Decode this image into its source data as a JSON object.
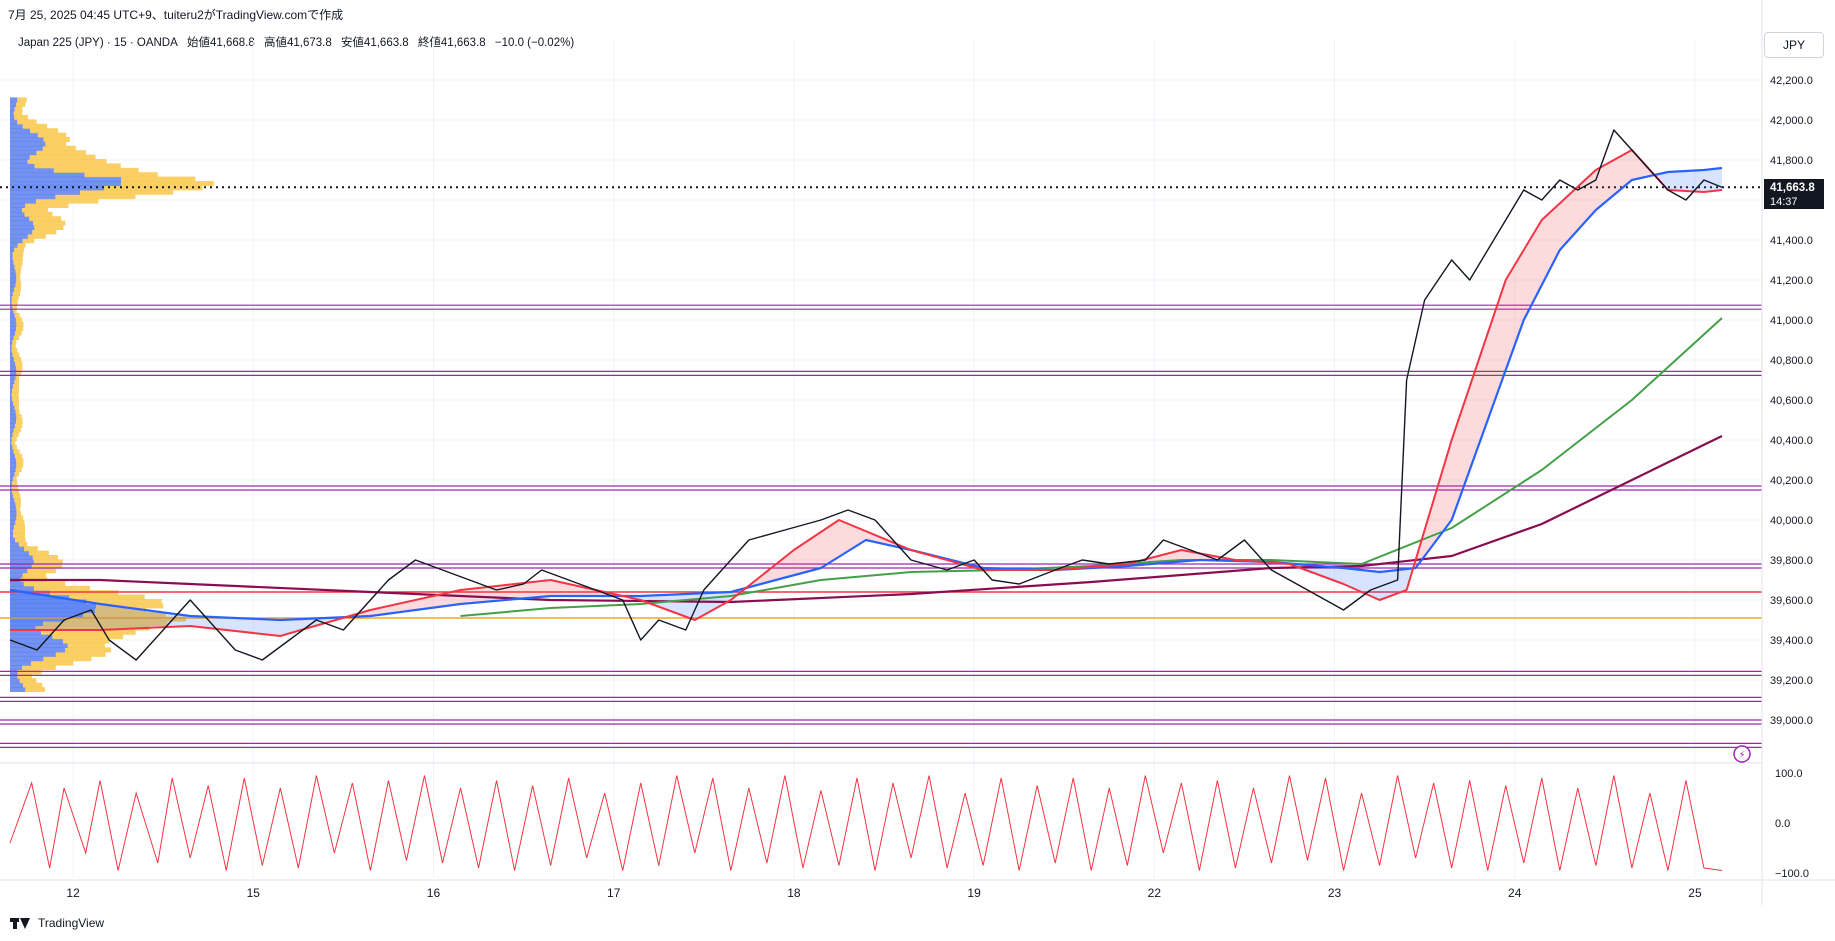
{
  "header": {
    "created_line": "7月 25, 2025 04:45 UTC+9、tuiteru2がTradingView.comで作成"
  },
  "legend": {
    "symbol": "Japan 225 (JPY) · 15 · OANDA",
    "open_label": "始値41,668.8",
    "high_label": "高値41,673.8",
    "low_label": "安値41,663.8",
    "close_label": "終値41,663.8",
    "change_label": "−10.0 (−0.02%)"
  },
  "currency_button": "JPY",
  "price_badge": {
    "price": "41,663.8",
    "countdown": "14:37"
  },
  "footer": {
    "brand": "TradingView"
  },
  "colors": {
    "price": "#131722",
    "ema_fast": "#f23645",
    "ema_mid": "#2962ff",
    "ema_green": "#43a047",
    "ema_maroon": "#880e4f",
    "level_line": "#9c27b0",
    "rsi": "#f23645",
    "vp_up": "#5b7ff0",
    "vp_down": "#f9c84b"
  },
  "chart_data": [
    {
      "type": "line",
      "ylim": [
        38800,
        42300
      ],
      "y_ticks": [
        "42,200.0",
        "42,000.0",
        "41,800.0",
        "41,600.0",
        "41,400.0",
        "41,200.0",
        "41,000.0",
        "40,800.0",
        "40,600.0",
        "40,400.0",
        "40,200.0",
        "40,000.0",
        "39,800.0",
        "39,600.0",
        "39,400.0",
        "39,200.0",
        "39,000.0"
      ],
      "y_tick_values": [
        42200,
        42000,
        41800,
        41600,
        41400,
        41200,
        41000,
        40800,
        40600,
        40400,
        40200,
        40000,
        39800,
        39600,
        39400,
        39200,
        39000
      ],
      "x_ticks": [
        "12",
        "15",
        "16",
        "17",
        "18",
        "19",
        "22",
        "23",
        "24",
        "25"
      ],
      "x_tick_values": [
        0.35,
        1.35,
        2.35,
        3.35,
        4.35,
        5.35,
        6.35,
        7.35,
        8.35,
        9.35
      ],
      "x_range": [
        0,
        9.6
      ],
      "last_price": 41663.8,
      "horizontal_levels": [
        {
          "value": 41064,
          "kind": "level"
        },
        {
          "value": 40733,
          "kind": "level"
        },
        {
          "value": 40160,
          "kind": "level"
        },
        {
          "value": 39770,
          "kind": "level"
        },
        {
          "value": 39233,
          "kind": "level"
        },
        {
          "value": 39103,
          "kind": "level"
        },
        {
          "value": 38990,
          "kind": "level"
        },
        {
          "value": 38873,
          "kind": "level"
        },
        {
          "value": 39640,
          "kind": "red"
        },
        {
          "value": 39510,
          "kind": "orange"
        }
      ],
      "series": [
        {
          "key": "price",
          "x": [
            0,
            0.15,
            0.3,
            0.45,
            0.55,
            0.7,
            0.85,
            1.0,
            1.1,
            1.25,
            1.4,
            1.55,
            1.7,
            1.85,
            2.0,
            2.1,
            2.25,
            2.4,
            2.55,
            2.7,
            2.85,
            2.95,
            3.1,
            3.25,
            3.4,
            3.5,
            3.6,
            3.75,
            3.85,
            4.0,
            4.1,
            4.3,
            4.5,
            4.65,
            4.8,
            5.0,
            5.2,
            5.35,
            5.45,
            5.6,
            5.8,
            5.95,
            6.1,
            6.3,
            6.4,
            6.55,
            6.7,
            6.85,
            7.0,
            7.1,
            7.3,
            7.4,
            7.55,
            7.7,
            7.75,
            7.85,
            8.0,
            8.1,
            8.2,
            8.3,
            8.4,
            8.5,
            8.6,
            8.7,
            8.8,
            8.9,
            9.0,
            9.1,
            9.2,
            9.3,
            9.4,
            9.5
          ],
          "y": [
            39400,
            39350,
            39500,
            39550,
            39400,
            39300,
            39450,
            39600,
            39500,
            39350,
            39300,
            39400,
            39500,
            39450,
            39600,
            39700,
            39800,
            39750,
            39700,
            39650,
            39680,
            39750,
            39700,
            39650,
            39600,
            39400,
            39500,
            39450,
            39650,
            39800,
            39900,
            39950,
            40000,
            40050,
            40000,
            39800,
            39750,
            39800,
            39700,
            39680,
            39750,
            39800,
            39780,
            39800,
            39900,
            39850,
            39800,
            39900,
            39750,
            39700,
            39600,
            39550,
            39650,
            39700,
            40700,
            41100,
            41300,
            41200,
            41350,
            41500,
            41650,
            41600,
            41700,
            41650,
            41700,
            41950,
            41850,
            41750,
            41650,
            41600,
            41700,
            41663.8
          ]
        },
        {
          "key": "ema_fast",
          "x": [
            0,
            0.5,
            1.0,
            1.5,
            2.0,
            2.5,
            3.0,
            3.5,
            3.8,
            4.0,
            4.35,
            4.6,
            5.0,
            5.4,
            5.8,
            6.2,
            6.5,
            6.8,
            7.1,
            7.4,
            7.6,
            7.75,
            8.0,
            8.3,
            8.5,
            8.8,
            9.0,
            9.2,
            9.4,
            9.5
          ],
          "y": [
            39450,
            39450,
            39470,
            39420,
            39550,
            39650,
            39700,
            39600,
            39500,
            39600,
            39850,
            40000,
            39850,
            39750,
            39750,
            39780,
            39850,
            39800,
            39780,
            39680,
            39600,
            39650,
            40400,
            41200,
            41500,
            41750,
            41850,
            41650,
            41640,
            41650
          ]
        },
        {
          "key": "ema_mid",
          "x": [
            0,
            0.5,
            1.0,
            1.5,
            2.0,
            2.5,
            3.0,
            3.5,
            4.0,
            4.5,
            4.75,
            5.0,
            5.4,
            5.8,
            6.2,
            6.6,
            7.0,
            7.4,
            7.6,
            7.8,
            8.0,
            8.2,
            8.4,
            8.6,
            8.8,
            9.0,
            9.2,
            9.4,
            9.5
          ],
          "y": [
            39650,
            39580,
            39520,
            39500,
            39520,
            39580,
            39620,
            39620,
            39640,
            39760,
            39900,
            39850,
            39760,
            39750,
            39770,
            39800,
            39790,
            39760,
            39740,
            39760,
            40000,
            40500,
            41000,
            41350,
            41550,
            41700,
            41740,
            41750,
            41760
          ]
        },
        {
          "key": "ema_green",
          "x": [
            2.5,
            3.0,
            3.5,
            4.0,
            4.5,
            5.0,
            5.5,
            6.0,
            6.5,
            7.0,
            7.5,
            8.0,
            8.5,
            9.0,
            9.5
          ],
          "y": [
            39520,
            39560,
            39580,
            39620,
            39700,
            39740,
            39750,
            39770,
            39800,
            39800,
            39780,
            39960,
            40250,
            40600,
            41010
          ]
        },
        {
          "key": "ema_maroon",
          "x": [
            0,
            0.5,
            1.0,
            2.0,
            3.0,
            4.0,
            5.0,
            6.0,
            7.0,
            7.5,
            8.0,
            8.5,
            9.0,
            9.5
          ],
          "y": [
            39700,
            39700,
            39680,
            39640,
            39600,
            39590,
            39630,
            39690,
            39760,
            39770,
            39820,
            39980,
            40200,
            40420
          ]
        }
      ]
    },
    {
      "type": "line",
      "ylim": [
        -110,
        110
      ],
      "y_ticks": [
        "100.0",
        "0.0",
        "−100.0"
      ],
      "y_tick_values": [
        100,
        0,
        -100
      ],
      "series": [
        {
          "key": "rsi",
          "x": [
            0,
            0.12,
            0.22,
            0.3,
            0.42,
            0.5,
            0.6,
            0.7,
            0.82,
            0.9,
            1.0,
            1.1,
            1.2,
            1.3,
            1.4,
            1.5,
            1.6,
            1.7,
            1.8,
            1.9,
            2.0,
            2.1,
            2.2,
            2.3,
            2.4,
            2.5,
            2.6,
            2.7,
            2.8,
            2.9,
            3.0,
            3.1,
            3.2,
            3.3,
            3.4,
            3.5,
            3.6,
            3.7,
            3.8,
            3.9,
            4.0,
            4.1,
            4.2,
            4.3,
            4.4,
            4.5,
            4.6,
            4.7,
            4.8,
            4.9,
            5.0,
            5.1,
            5.2,
            5.3,
            5.4,
            5.5,
            5.6,
            5.7,
            5.8,
            5.9,
            6.0,
            6.1,
            6.2,
            6.3,
            6.4,
            6.5,
            6.6,
            6.7,
            6.8,
            6.9,
            7.0,
            7.1,
            7.2,
            7.3,
            7.4,
            7.5,
            7.6,
            7.7,
            7.8,
            7.9,
            8.0,
            8.1,
            8.2,
            8.3,
            8.4,
            8.5,
            8.6,
            8.7,
            8.8,
            8.9,
            9.0,
            9.1,
            9.2,
            9.3,
            9.4,
            9.5
          ],
          "y": [
            -40,
            80,
            -90,
            70,
            -60,
            85,
            -95,
            60,
            -80,
            90,
            -70,
            75,
            -95,
            90,
            -85,
            70,
            -90,
            95,
            -60,
            80,
            -95,
            85,
            -75,
            95,
            -80,
            70,
            -90,
            85,
            -95,
            75,
            -85,
            90,
            -70,
            60,
            -95,
            80,
            -85,
            95,
            -60,
            90,
            -95,
            70,
            -80,
            95,
            -90,
            65,
            -85,
            90,
            -95,
            80,
            -70,
            95,
            -90,
            60,
            -85,
            90,
            -95,
            75,
            -80,
            90,
            -95,
            70,
            -85,
            95,
            -60,
            80,
            -95,
            85,
            -90,
            70,
            -80,
            95,
            -75,
            90,
            -95,
            60,
            -85,
            95,
            -70,
            80,
            -90,
            85,
            -95,
            75,
            -80,
            90,
            -95,
            70,
            -85,
            95,
            -90,
            60,
            -95,
            85,
            -90,
            -95
          ]
        }
      ]
    }
  ]
}
